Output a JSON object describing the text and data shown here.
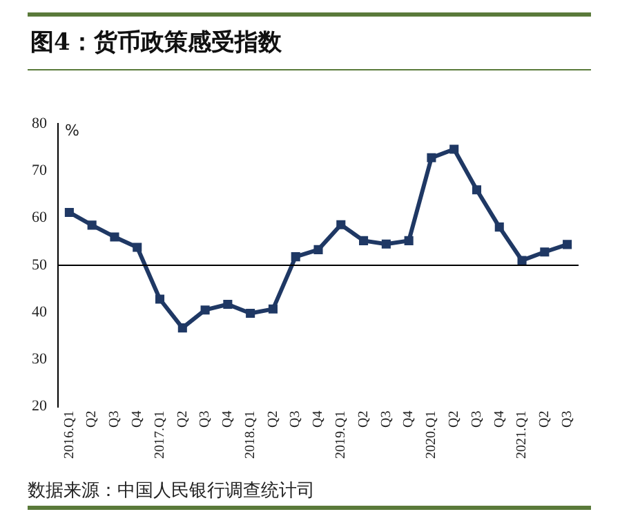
{
  "chart_data": {
    "type": "line",
    "title": "图4：货币政策感受指数",
    "ylabel": "%",
    "annotations": [
      "数据来源：中国人民银行调查统计司"
    ],
    "categories": [
      "2016.Q1",
      "Q2",
      "Q3",
      "Q4",
      "2017.Q1",
      "Q2",
      "Q3",
      "Q4",
      "2018.Q1",
      "Q2",
      "Q3",
      "Q4",
      "2019.Q1",
      "Q2",
      "Q3",
      "Q4",
      "2020.Q1",
      "Q2",
      "Q3",
      "Q4",
      "2021.Q1",
      "Q2",
      "Q3"
    ],
    "series": [
      {
        "color": "#1f3864",
        "values": [
          61.2,
          58.5,
          56,
          53.8,
          42.8,
          36.7,
          40.5,
          41.7,
          39.8,
          40.7,
          51.8,
          53.3,
          58.6,
          55.2,
          54.5,
          55.2,
          72.8,
          74.6,
          66,
          58.1,
          51,
          52.8,
          54.4
        ]
      }
    ],
    "ylim": [
      20,
      80
    ],
    "yticks": [
      20,
      30,
      40,
      50,
      60,
      70,
      80
    ],
    "grid": false,
    "legend": false,
    "marker": "square",
    "line_style": "solid",
    "ref_lines": [
      {
        "axis": "y",
        "value": 50,
        "color": "#000000"
      }
    ]
  }
}
